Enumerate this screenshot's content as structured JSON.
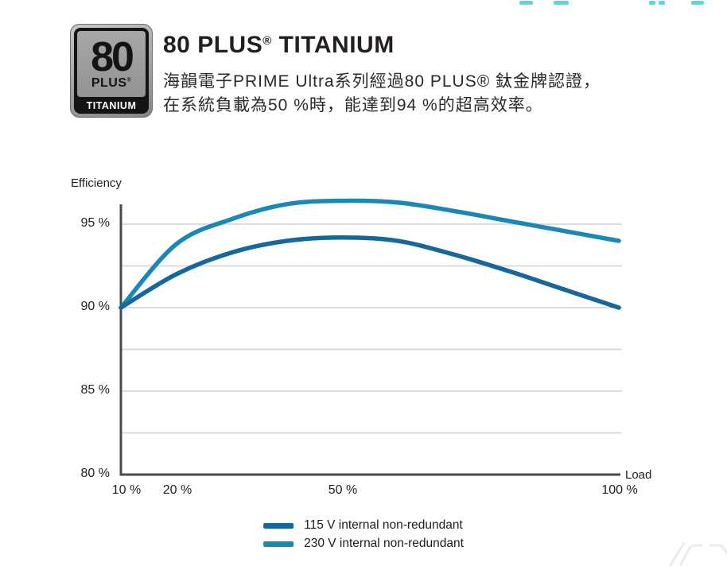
{
  "badge": {
    "number": "80",
    "plus": "PLUS",
    "reg": "®",
    "tier": "TITANIUM"
  },
  "header": {
    "title_pre": "80 PLUS",
    "title_reg": "®",
    "title_post": " TITANIUM",
    "desc_line1": "海韻電子PRIME Ultra系列經過80 PLUS® 鈦金牌認證，",
    "desc_line2": "在系統負載為50 %時，能達到94 %的超高效率。"
  },
  "chart_data": {
    "type": "line",
    "title": "",
    "ylabel": "Efficiency",
    "xlabel": "Load",
    "x": [
      10,
      20,
      30,
      40,
      50,
      60,
      70,
      80,
      90,
      100
    ],
    "series": [
      {
        "name": "115 V internal non-redundant",
        "color": "#15689d",
        "values": [
          90.0,
          92.0,
          93.3,
          94.0,
          94.2,
          94.0,
          93.2,
          92.2,
          91.1,
          90.0
        ]
      },
      {
        "name": "230 V internal non-redundant",
        "color": "#1a88b7",
        "values": [
          90.0,
          93.8,
          95.3,
          96.2,
          96.4,
          96.3,
          95.8,
          95.2,
          94.6,
          94.0
        ]
      }
    ],
    "xlim": [
      10,
      100
    ],
    "ylim": [
      80,
      96.5
    ],
    "ytick_labels": [
      "95 %",
      "90 %",
      "85 %",
      "80 %"
    ],
    "ytick_values": [
      95,
      90,
      85,
      80
    ],
    "gridline_values": [
      95,
      92.5,
      90,
      87.5,
      85,
      82.5
    ],
    "xtick_labels": [
      "10 %",
      "20 %",
      "50 %",
      "100 %"
    ],
    "xtick_values": [
      10,
      20,
      50,
      100
    ],
    "grid": true,
    "legend_position": "bottom"
  },
  "colors": {
    "accent_cyan": "#57d7e9",
    "axis": "#4a4a4c",
    "grid": "#d8d8d8",
    "fragment": "#ebebeb"
  }
}
